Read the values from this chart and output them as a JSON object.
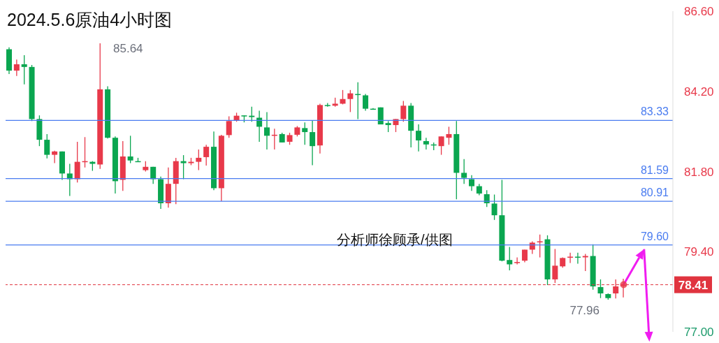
{
  "chart_data": {
    "type": "candlestick",
    "title": "2024.5.6原油4小时图",
    "categories": [
      null,
      null,
      null,
      null,
      null,
      null,
      null,
      null,
      null,
      null,
      null,
      null,
      null,
      null,
      null,
      null,
      null,
      null,
      null,
      null,
      null,
      null,
      null,
      null,
      null,
      null,
      null,
      null,
      null,
      null,
      null,
      null,
      null,
      null,
      null,
      null,
      null,
      null,
      null,
      null,
      null,
      null,
      null,
      null,
      null,
      null,
      null,
      null,
      null,
      null,
      null,
      null,
      null,
      null,
      null,
      null,
      null,
      null,
      null,
      null,
      null,
      null,
      null,
      null,
      null,
      null,
      null,
      null,
      null,
      null,
      null,
      null,
      null,
      null,
      null,
      null,
      null,
      null,
      null,
      null,
      null,
      null
    ],
    "ohlc": [
      [
        85.46,
        85.52,
        84.72,
        84.82
      ],
      [
        84.82,
        85.15,
        84.66,
        85.01
      ],
      [
        85.01,
        85.28,
        84.41,
        84.93
      ],
      [
        84.93,
        84.99,
        83.31,
        83.37
      ],
      [
        83.37,
        83.48,
        82.56,
        82.75
      ],
      [
        82.75,
        82.92,
        82.19,
        82.3
      ],
      [
        82.3,
        82.42,
        82.05,
        82.4
      ],
      [
        82.4,
        82.4,
        81.55,
        81.74
      ],
      [
        81.74,
        82.03,
        81.07,
        81.57
      ],
      [
        81.57,
        82.69,
        81.47,
        82.09
      ],
      [
        82.09,
        82.83,
        81.92,
        82.11
      ],
      [
        82.09,
        82.11,
        81.82,
        82.03
      ],
      [
        82.01,
        85.64,
        81.88,
        84.26
      ],
      [
        84.26,
        84.35,
        82.79,
        82.81
      ],
      [
        82.81,
        82.85,
        81.14,
        81.51
      ],
      [
        81.55,
        82.71,
        81.22,
        82.25
      ],
      [
        82.25,
        82.87,
        82.05,
        82.13
      ],
      [
        82.11,
        82.21,
        82.09,
        82.09
      ],
      [
        81.84,
        82.11,
        81.8,
        81.94
      ],
      [
        81.94,
        81.94,
        81.43,
        81.57
      ],
      [
        81.57,
        81.65,
        80.68,
        80.85
      ],
      [
        80.85,
        81.92,
        80.72,
        81.43
      ],
      [
        81.43,
        82.21,
        80.82,
        82.11
      ],
      [
        82.11,
        82.29,
        81.57,
        82.05
      ],
      [
        82.05,
        82.21,
        81.99,
        82.09
      ],
      [
        82.09,
        82.46,
        81.84,
        82.21
      ],
      [
        82.23,
        82.6,
        81.98,
        82.54
      ],
      [
        82.54,
        83.0,
        81.24,
        81.3
      ],
      [
        81.3,
        82.9,
        80.91,
        82.87
      ],
      [
        82.89,
        83.45,
        82.81,
        83.31
      ],
      [
        83.33,
        83.56,
        83.29,
        83.47
      ],
      [
        83.48,
        83.48,
        83.27,
        83.45
      ],
      [
        83.47,
        83.74,
        83.29,
        83.43
      ],
      [
        83.41,
        83.62,
        82.69,
        83.14
      ],
      [
        83.12,
        83.58,
        82.46,
        82.87
      ],
      [
        82.89,
        83.08,
        82.46,
        82.9
      ],
      [
        82.92,
        82.96,
        82.67,
        82.67
      ],
      [
        82.69,
        82.96,
        82.6,
        82.89
      ],
      [
        82.9,
        83.16,
        82.85,
        83.12
      ],
      [
        83.1,
        83.27,
        82.6,
        82.98
      ],
      [
        82.98,
        83.33,
        81.99,
        82.56
      ],
      [
        82.58,
        83.83,
        82.34,
        83.79
      ],
      [
        83.79,
        83.85,
        83.74,
        83.77
      ],
      [
        83.77,
        84.01,
        83.74,
        83.83
      ],
      [
        83.83,
        84.24,
        83.81,
        83.97
      ],
      [
        83.97,
        84.24,
        83.58,
        84.14
      ],
      [
        84.12,
        84.47,
        83.37,
        84.1
      ],
      [
        84.08,
        84.12,
        83.62,
        83.68
      ],
      [
        83.68,
        83.7,
        83.66,
        83.66
      ],
      [
        83.72,
        83.72,
        83.21,
        83.21
      ],
      [
        83.25,
        83.31,
        82.98,
        83.19
      ],
      [
        83.19,
        83.37,
        82.98,
        83.37
      ],
      [
        83.37,
        83.91,
        83.29,
        83.77
      ],
      [
        83.77,
        83.85,
        82.52,
        83.02
      ],
      [
        83.02,
        83.21,
        82.4,
        82.73
      ],
      [
        82.71,
        82.81,
        82.46,
        82.61
      ],
      [
        82.61,
        82.67,
        82.44,
        82.6
      ],
      [
        82.56,
        82.85,
        82.3,
        82.85
      ],
      [
        82.81,
        83.14,
        82.6,
        82.92
      ],
      [
        82.92,
        83.31,
        80.97,
        81.76
      ],
      [
        81.76,
        82.17,
        81.43,
        81.61
      ],
      [
        81.57,
        81.69,
        81.22,
        81.36
      ],
      [
        81.36,
        81.43,
        81.09,
        81.14
      ],
      [
        81.12,
        81.24,
        80.74,
        80.85
      ],
      [
        80.84,
        81.11,
        80.35,
        80.49
      ],
      [
        80.49,
        81.55,
        79.11,
        79.13
      ],
      [
        79.15,
        79.54,
        78.84,
        79.02
      ],
      [
        79.06,
        79.23,
        79.02,
        79.09
      ],
      [
        79.13,
        79.46,
        79.08,
        79.46
      ],
      [
        79.46,
        79.71,
        79.33,
        79.67
      ],
      [
        79.69,
        79.91,
        79.23,
        79.71
      ],
      [
        79.77,
        79.89,
        78.4,
        78.57
      ],
      [
        78.57,
        79.48,
        78.46,
        78.98
      ],
      [
        78.96,
        79.23,
        78.92,
        79.21
      ],
      [
        79.23,
        79.37,
        79.06,
        79.25
      ],
      [
        79.25,
        79.37,
        79.04,
        79.23
      ],
      [
        79.23,
        79.33,
        78.82,
        79.27
      ],
      [
        79.27,
        79.62,
        78.26,
        78.36
      ],
      [
        78.34,
        78.57,
        78.01,
        78.15
      ],
      [
        78.13,
        78.15,
        77.96,
        78.01
      ],
      [
        78.15,
        78.57,
        78.0,
        78.36
      ],
      [
        78.38,
        78.59,
        78.03,
        78.41
      ]
    ],
    "colors": [
      "#0aa650",
      "#e8394a",
      "#0aa650",
      "#0aa650",
      "#0aa650",
      "#0aa650",
      "#e8394a",
      "#0aa650",
      "#0aa650",
      "#e8394a",
      "#e8394a",
      "#0aa650",
      "#e8394a",
      "#0aa650",
      "#0aa650",
      "#e8394a",
      "#0aa650",
      "#0aa650",
      "#e8394a",
      "#0aa650",
      "#0aa650",
      "#e8394a",
      "#e8394a",
      "#0aa650",
      "#e8394a",
      "#e8394a",
      "#e8394a",
      "#0aa650",
      "#e8394a",
      "#e8394a",
      "#e8394a",
      "#0aa650",
      "#0aa650",
      "#0aa650",
      "#0aa650",
      "#e8394a",
      "#0aa650",
      "#e8394a",
      "#e8394a",
      "#0aa650",
      "#0aa650",
      "#e8394a",
      "#0aa650",
      "#e8394a",
      "#e8394a",
      "#e8394a",
      "#0aa650",
      "#0aa650",
      "#0aa650",
      "#0aa650",
      "#0aa650",
      "#e8394a",
      "#e8394a",
      "#0aa650",
      "#0aa650",
      "#0aa650",
      "#0aa650",
      "#e8394a",
      "#e8394a",
      "#0aa650",
      "#0aa650",
      "#0aa650",
      "#0aa650",
      "#0aa650",
      "#0aa650",
      "#0aa650",
      "#0aa650",
      "#e8394a",
      "#e8394a",
      "#e8394a",
      "#e8394a",
      "#0aa650",
      "#e8394a",
      "#e8394a",
      "#e8394a",
      "#0aa650",
      "#e8394a",
      "#0aa650",
      "#0aa650",
      "#0aa650",
      "#e8394a",
      "#e8394a"
    ],
    "ylim": [
      77.0,
      86.6
    ],
    "yticks": [
      {
        "value": 86.6,
        "label": "86.60"
      },
      {
        "value": 84.2,
        "label": "84.20"
      },
      {
        "value": 81.8,
        "label": "81.80"
      },
      {
        "value": 79.4,
        "label": "79.40"
      },
      {
        "value": 77.0,
        "label": "77.00"
      }
    ],
    "tick_labels": "y",
    "ref_lines": [
      {
        "axis": "y",
        "value": 83.33,
        "label": "83.33",
        "color": "#4a7cf0"
      },
      {
        "axis": "y",
        "value": 81.59,
        "label": "81.59",
        "color": "#4a7cf0"
      },
      {
        "axis": "y",
        "value": 80.91,
        "label": "80.91",
        "color": "#4a7cf0"
      },
      {
        "axis": "y",
        "value": 79.6,
        "label": "79.60",
        "color": "#4a7cf0"
      },
      {
        "axis": "y",
        "value": 78.41,
        "label": "78.41",
        "color": "#e0343f",
        "line_style": "dashed"
      }
    ],
    "annotations": [
      "分析师徐顾承/供图",
      "85.64",
      "77.96"
    ]
  }
}
